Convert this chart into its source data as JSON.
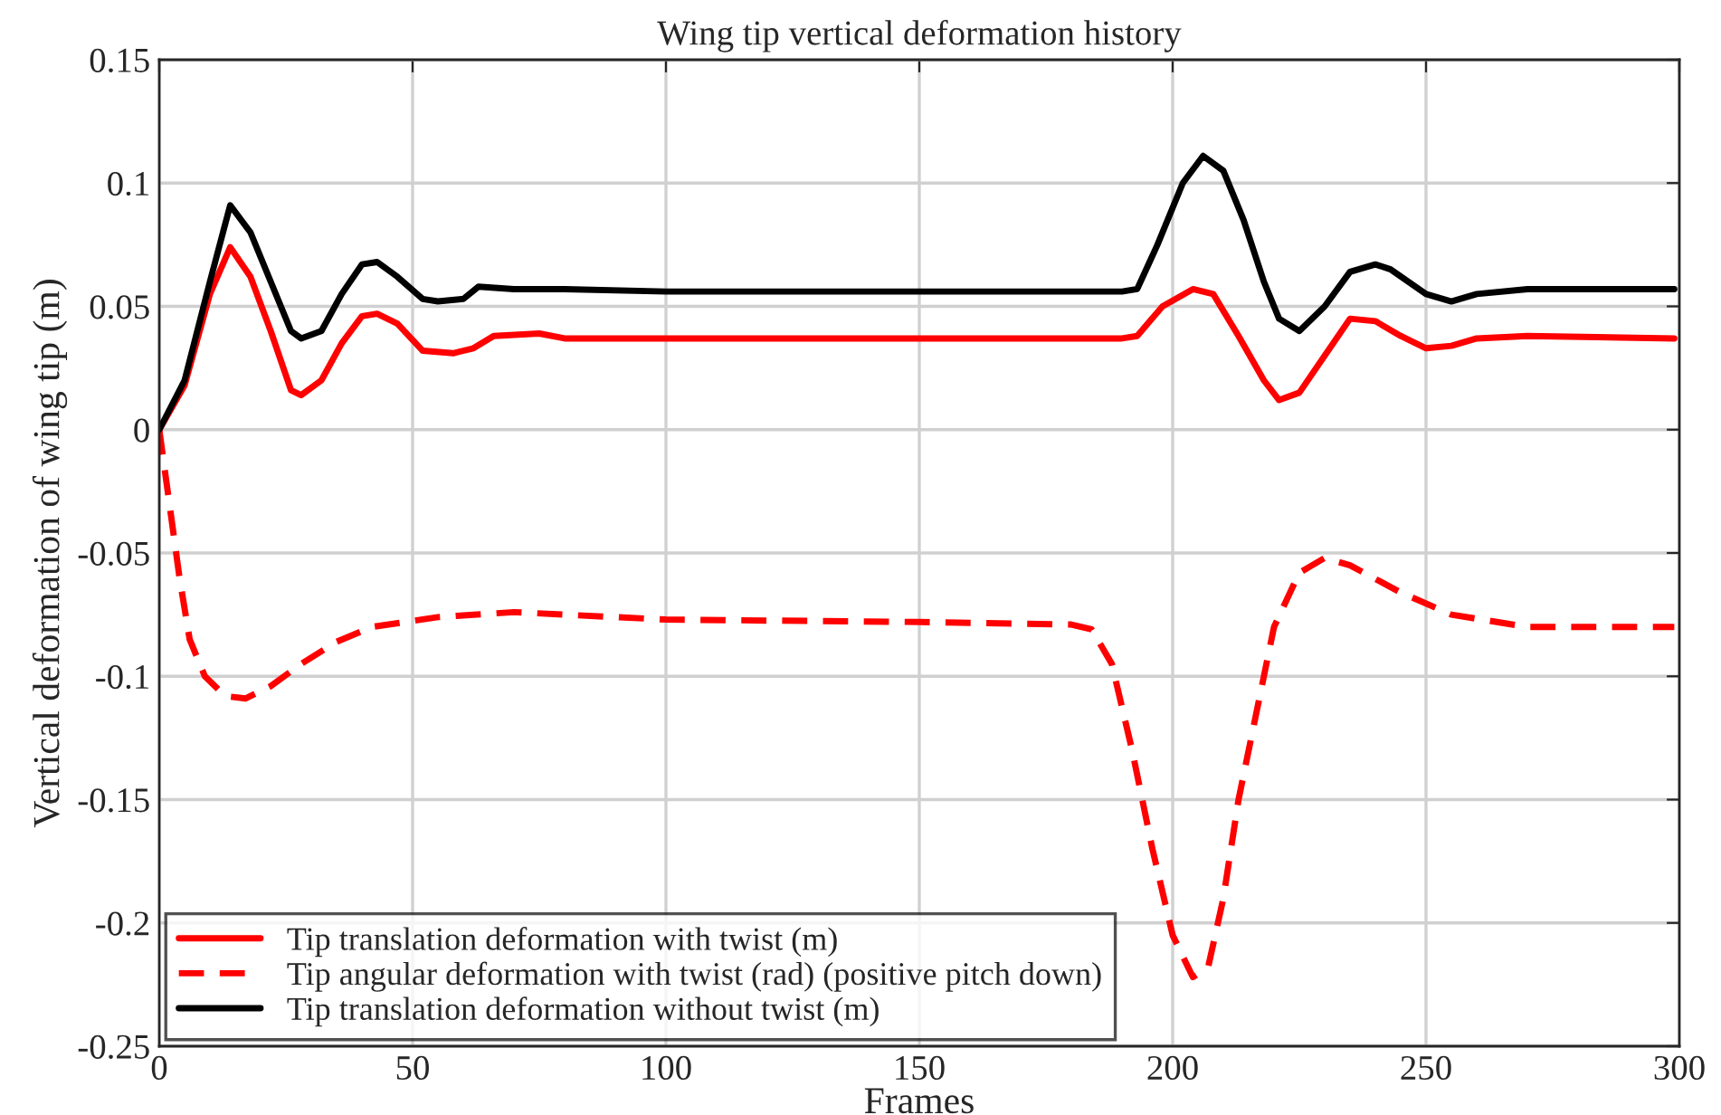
{
  "chart_data": {
    "type": "line",
    "title": "Wing tip vertical deformation history",
    "xlabel": "Frames",
    "ylabel": "Vertical deformation of wing tip (m)",
    "xlim": [
      0,
      300
    ],
    "xticks": [
      0,
      50,
      100,
      150,
      200,
      250,
      300
    ],
    "ylim": [
      -0.25,
      0.15
    ],
    "yticks": [
      -0.25,
      -0.2,
      -0.15,
      -0.1,
      -0.05,
      0,
      0.05,
      0.1,
      0.15
    ],
    "grid": true,
    "legend": "bottom left",
    "series": [
      {
        "name": "Tip translation deformation with twist (m)",
        "color": "#ff0000",
        "line_style": "solid",
        "x": [
          0,
          5,
          10,
          14,
          18,
          22,
          26,
          28,
          32,
          36,
          40,
          43,
          47,
          52,
          58,
          62,
          66,
          75,
          80,
          100,
          150,
          190,
          193,
          198,
          204,
          208,
          213,
          218,
          221,
          225,
          230,
          235,
          240,
          245,
          250,
          255,
          260,
          270,
          299
        ],
        "values": [
          0,
          0.018,
          0.055,
          0.074,
          0.062,
          0.04,
          0.016,
          0.014,
          0.02,
          0.035,
          0.046,
          0.047,
          0.043,
          0.032,
          0.031,
          0.033,
          0.038,
          0.039,
          0.037,
          0.037,
          0.037,
          0.037,
          0.038,
          0.05,
          0.057,
          0.055,
          0.038,
          0.02,
          0.012,
          0.015,
          0.03,
          0.045,
          0.044,
          0.038,
          0.033,
          0.034,
          0.037,
          0.038,
          0.037
        ]
      },
      {
        "name": "Tip angular deformation with twist (rad) (positive pitch down)",
        "color": "#ff0000",
        "line_style": "dashed",
        "x": [
          0,
          2,
          4,
          6,
          9,
          13,
          17,
          22,
          28,
          35,
          42,
          55,
          70,
          100,
          150,
          180,
          184,
          188,
          192,
          196,
          200,
          204,
          207,
          210,
          213,
          217,
          220,
          225,
          230,
          235,
          245,
          255,
          270,
          299
        ],
        "values": [
          0,
          -0.03,
          -0.06,
          -0.085,
          -0.1,
          -0.108,
          -0.109,
          -0.104,
          -0.095,
          -0.086,
          -0.08,
          -0.076,
          -0.074,
          -0.077,
          -0.078,
          -0.079,
          -0.081,
          -0.095,
          -0.13,
          -0.17,
          -0.205,
          -0.222,
          -0.218,
          -0.19,
          -0.15,
          -0.11,
          -0.08,
          -0.058,
          -0.052,
          -0.055,
          -0.066,
          -0.075,
          -0.08,
          -0.08
        ]
      },
      {
        "name": "Tip translation deformation without twist (m)",
        "color": "#000000",
        "line_style": "solid",
        "x": [
          0,
          5,
          10,
          14,
          18,
          22,
          26,
          28,
          32,
          36,
          40,
          43,
          47,
          52,
          55,
          60,
          63,
          70,
          80,
          100,
          150,
          190,
          193,
          197,
          202,
          206,
          210,
          214,
          218,
          221,
          225,
          230,
          235,
          240,
          243,
          250,
          255,
          260,
          270,
          280,
          299
        ],
        "values": [
          0,
          0.02,
          0.06,
          0.091,
          0.08,
          0.06,
          0.04,
          0.037,
          0.04,
          0.055,
          0.067,
          0.068,
          0.062,
          0.053,
          0.052,
          0.053,
          0.058,
          0.057,
          0.057,
          0.056,
          0.056,
          0.056,
          0.057,
          0.075,
          0.1,
          0.111,
          0.105,
          0.085,
          0.06,
          0.045,
          0.04,
          0.05,
          0.064,
          0.067,
          0.065,
          0.055,
          0.052,
          0.055,
          0.057,
          0.057,
          0.057
        ]
      }
    ]
  }
}
